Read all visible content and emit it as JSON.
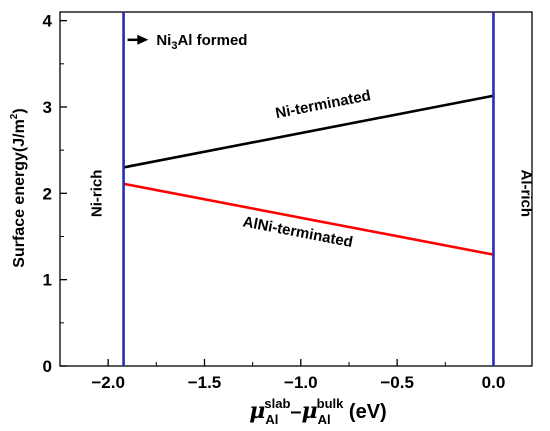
{
  "chart_data": {
    "type": "line",
    "title": "",
    "xlabel": {
      "mu": "μ",
      "slab_sub": "Al",
      "slab_sup": "slab",
      "minus": "–",
      "bulk_sub": "Al",
      "bulk_sup": "bulk",
      "unit": " (eV)"
    },
    "ylabel": {
      "main": "Surface energy(J/m",
      "sup": "2",
      "close": ")"
    },
    "xlim": [
      -2.25,
      0.2
    ],
    "ylim": [
      0,
      4.1
    ],
    "x_ticks": [
      {
        "value": -2.0,
        "label": "−2.0"
      },
      {
        "value": -1.5,
        "label": "−1.5"
      },
      {
        "value": -1.0,
        "label": "−1.0"
      },
      {
        "value": -0.5,
        "label": "−0.5"
      },
      {
        "value": 0.0,
        "label": "0.0"
      }
    ],
    "y_ticks": [
      {
        "value": 0,
        "label": "0"
      },
      {
        "value": 1,
        "label": "1"
      },
      {
        "value": 2,
        "label": "2"
      },
      {
        "value": 3,
        "label": "3"
      },
      {
        "value": 4,
        "label": "4"
      }
    ],
    "grid": false,
    "series": [
      {
        "name": "Ni-terminated",
        "color": "#000000",
        "x": [
          -1.92,
          0.0
        ],
        "y": [
          2.3,
          3.13
        ]
      },
      {
        "name": "AlNi-terminated",
        "color": "#ff0000",
        "x": [
          -1.92,
          0.0
        ],
        "y": [
          2.11,
          1.29
        ]
      }
    ],
    "boundaries": [
      {
        "x": -1.92,
        "label": "Ni-rich",
        "color": "#2a2ab8"
      },
      {
        "x": 0.0,
        "label": "Al-rich",
        "color": "#2a2ab8"
      }
    ],
    "annotations": {
      "formed": {
        "pre": "Ni",
        "sub": "3",
        "post": "Al formed",
        "x": -1.75,
        "y": 3.72
      }
    }
  }
}
